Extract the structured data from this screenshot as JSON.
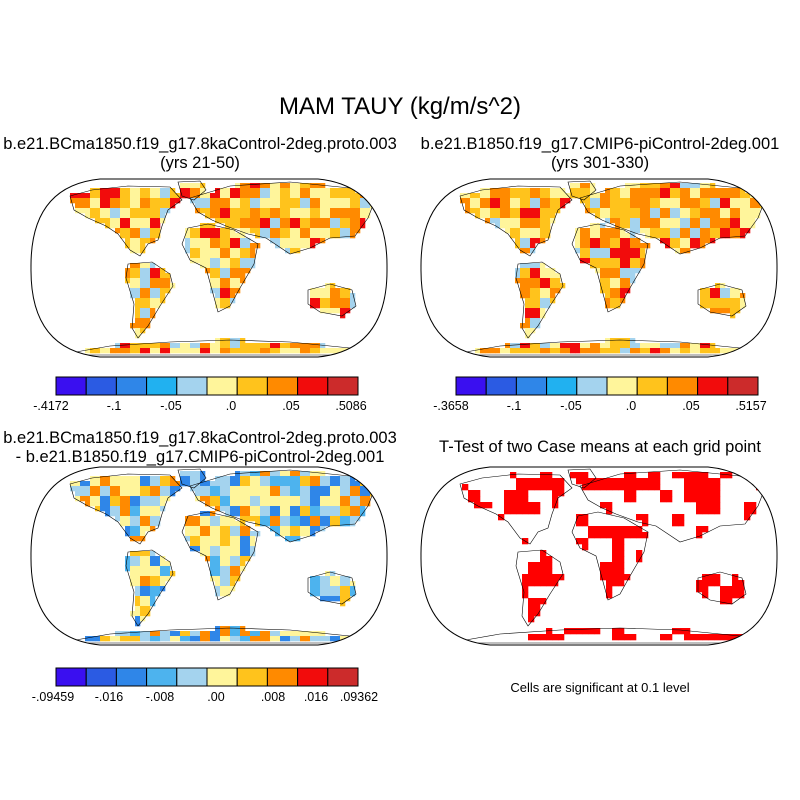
{
  "title": "MAM TAUY (kg/m/s^2)",
  "panels": [
    {
      "line1": "b.e21.BCma1850.f19_g17.8kaControl-2deg.proto.003",
      "line2": "(yrs 21-50)"
    },
    {
      "line1": "b.e21.B1850.f19_g17.CMIP6-piControl-2deg.001",
      "line2": "(yrs 301-330)"
    },
    {
      "line1": "b.e21.BCma1850.f19_g17.8kaControl-2deg.proto.003",
      "line2": "- b.e21.B1850.f19_g17.CMIP6-piControl-2deg.001"
    },
    {
      "line1": "T-Test of two Case means at each grid point",
      "line2": ""
    }
  ],
  "colorbars": [
    {
      "colors": [
        "#3a0ff0",
        "#2b5be3",
        "#2f86e8",
        "#21b1f0",
        "#a4d3ee",
        "#fff59b",
        "#ffc31c",
        "#ff8a00",
        "#f20c0c",
        "#cc2b2b"
      ],
      "labels": [
        "-.4172",
        "-.1",
        "-.05",
        ".0",
        ".05",
        ".5086"
      ]
    },
    {
      "colors": [
        "#3a0ff0",
        "#2b5be3",
        "#2f86e8",
        "#21b1f0",
        "#a4d3ee",
        "#fff59b",
        "#ffc31c",
        "#ff8a00",
        "#f20c0c",
        "#cc2b2b"
      ],
      "labels": [
        "-.3658",
        "-.1",
        "-.05",
        ".0",
        ".05",
        ".5157"
      ]
    },
    {
      "colors": [
        "#3a0ff0",
        "#2b5be3",
        "#2f86e8",
        "#4db3ee",
        "#a4d3ee",
        "#fff59b",
        "#ffc31c",
        "#ff8a00",
        "#f20c0c",
        "#cc2b2b"
      ],
      "labels": [
        "-.09459",
        "-.016",
        "-.008",
        ".00",
        ".008",
        ".016",
        ".09362"
      ]
    }
  ],
  "significance_note": "Cells are significant at 0.1 level"
}
